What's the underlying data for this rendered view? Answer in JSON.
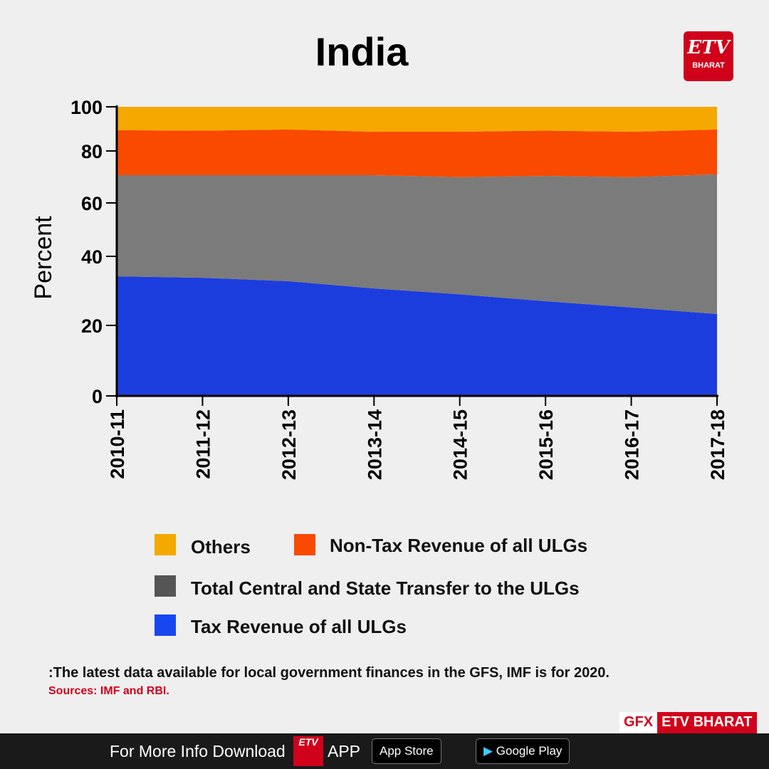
{
  "title": "India",
  "logo": {
    "text": "ETV",
    "sub": "BHARAT"
  },
  "chart_data": {
    "type": "area",
    "stacked": true,
    "ylabel": "Percent",
    "xlabel": "",
    "ylim": [
      0,
      100
    ],
    "yticks": [
      0,
      20,
      40,
      60,
      80,
      100
    ],
    "categories": [
      "2010-11",
      "2011-12",
      "2012-13",
      "2013-14",
      "2014-15",
      "2015-16",
      "2016-17",
      "2017-18"
    ],
    "series": [
      {
        "name": "Tax Revenue of all ULGs",
        "color": "#1c3ddd",
        "values": [
          34.2,
          33.8,
          32.8,
          30.7,
          29.0,
          27.0,
          25.2,
          23.3
        ]
      },
      {
        "name": "Total Central and State Transfer to the ULGs",
        "color": "#7b7b7b",
        "values": [
          36.5,
          36.9,
          37.9,
          40.0,
          40.9,
          43.4,
          44.7,
          47.7
        ]
      },
      {
        "name": "Non-Tax Revenue of all ULGs",
        "color": "#f94a00",
        "values": [
          18.7,
          18.5,
          19.0,
          18.0,
          18.8,
          18.8,
          18.8,
          18.7
        ]
      },
      {
        "name": "Others",
        "color": "#f5a800",
        "values": [
          10.6,
          10.8,
          10.3,
          11.3,
          11.3,
          10.8,
          11.3,
          10.3
        ]
      }
    ],
    "legend": "bottom"
  },
  "legend": [
    {
      "label": "Others",
      "color": "#f5a800"
    },
    {
      "label": "Non-Tax Revenue of all ULGs",
      "color": "#f94a00"
    },
    {
      "label": "Total Central and State Transfer to the ULGs",
      "color": "#555555"
    },
    {
      "label": "Tax Revenue of all ULGs",
      "color": "#1747f0"
    }
  ],
  "note": ":The latest data available for local government finances in the GFS, IMF is for 2020.",
  "sources": "Sources: IMF and RBI.",
  "gfx": {
    "a": "GFX",
    "b": "ETV BHARAT"
  },
  "footer": {
    "text": "For More Info Download",
    "app": "APP",
    "logo": "ETV",
    "appstore": "App Store",
    "googleplay": "Google Play"
  }
}
